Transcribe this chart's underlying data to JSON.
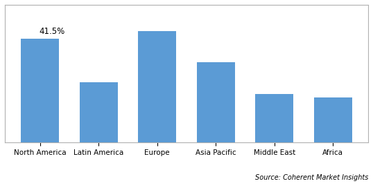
{
  "categories": [
    "North America",
    "Latin America",
    "Europe",
    "Asia Pacific",
    "Middle East",
    "Africa"
  ],
  "values": [
    41.5,
    24.0,
    44.5,
    32.0,
    19.5,
    18.0
  ],
  "bar_color": "#5B9BD5",
  "annotation_text": "41.5%",
  "annotation_bar_index": 0,
  "source_text": "Source: Coherent Market Insights",
  "background_color": "#ffffff",
  "grid_color": "#d0d0d0",
  "ylim": [
    0,
    55
  ],
  "bar_width": 0.65,
  "figsize": [
    5.38,
    2.72
  ],
  "dpi": 100
}
